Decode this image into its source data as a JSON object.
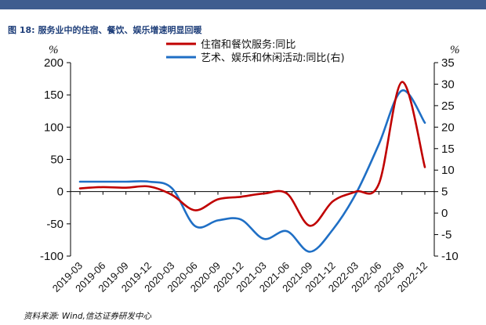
{
  "figure": {
    "number_label": "图 18:",
    "title": "服务业中的住宿、餐饮、娱乐增速明显回暖",
    "source": "资料来源: Wind,信达证券研发中心"
  },
  "chart_data": {
    "type": "line",
    "x": [
      "2019-03",
      "2019-06",
      "2019-09",
      "2019-12",
      "2020-03",
      "2020-06",
      "2020-09",
      "2020-12",
      "2021-03",
      "2021-06",
      "2021-09",
      "2021-12",
      "2022-03",
      "2022-06",
      "2022-09",
      "2022-12"
    ],
    "left_axis": {
      "unit": "%",
      "ylim": [
        -100,
        200
      ],
      "ticks": [
        -100,
        -50,
        0,
        50,
        100,
        150,
        200
      ]
    },
    "right_axis": {
      "unit": "%",
      "ylim": [
        -10,
        35
      ],
      "ticks": [
        -10,
        -5,
        0,
        5,
        10,
        15,
        20,
        25,
        30,
        35
      ]
    },
    "series": [
      {
        "name": "住宿和餐饮服务:同比",
        "axis": "left",
        "color": "#c00000",
        "values": [
          5,
          7,
          6,
          8,
          -5,
          -29,
          -12,
          -8,
          -3,
          -3,
          -53,
          -15,
          0,
          12,
          170,
          38
        ]
      },
      {
        "name": "艺术、娱乐和休闲活动:同比(右)",
        "axis": "right",
        "color": "#1f6fc5",
        "values": [
          7.3,
          7.3,
          7.3,
          7.3,
          5.8,
          -3,
          -1.7,
          -1.5,
          -6,
          -4.2,
          -9,
          -3.8,
          4.5,
          16,
          28.5,
          21
        ]
      }
    ],
    "legend_position": "top-center",
    "grid": false
  }
}
